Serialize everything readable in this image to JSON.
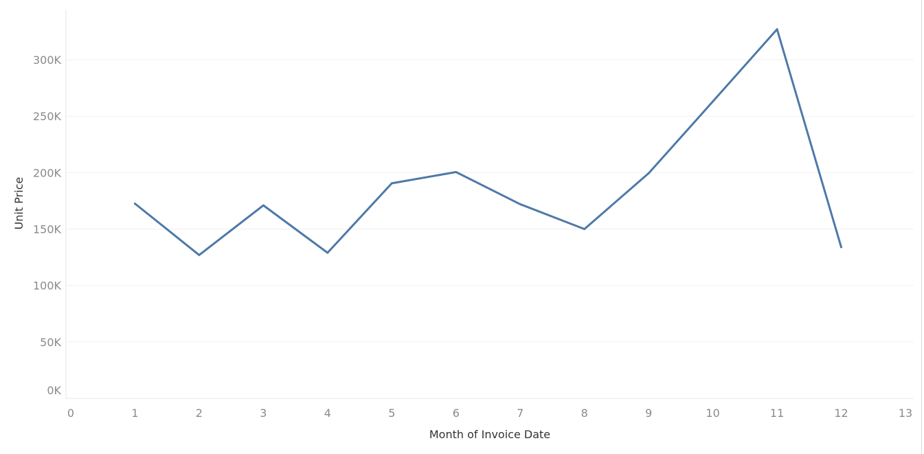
{
  "chart_data": {
    "type": "line",
    "title": "",
    "xlabel": "Month of Invoice Date",
    "ylabel": "Unit Price",
    "xlim": [
      0,
      13
    ],
    "ylim": [
      0,
      345000
    ],
    "x_ticks": [
      0,
      1,
      2,
      3,
      4,
      5,
      6,
      7,
      8,
      9,
      10,
      11,
      12,
      13
    ],
    "x_tick_labels": [
      "0",
      "1",
      "2",
      "3",
      "4",
      "5",
      "6",
      "7",
      "8",
      "9",
      "10",
      "11",
      "12",
      "13"
    ],
    "y_ticks": [
      0,
      50000,
      100000,
      150000,
      200000,
      250000,
      300000
    ],
    "y_tick_labels": [
      "0K",
      "50K",
      "100K",
      "150K",
      "200K",
      "250K",
      "300K"
    ],
    "grid": true,
    "series": [
      {
        "x": [
          1,
          2,
          3,
          4,
          5,
          6,
          7,
          8,
          9,
          10,
          11,
          12
        ],
        "values": [
          172500,
          127000,
          171000,
          129000,
          190500,
          200500,
          172000,
          150000,
          199500,
          263000,
          327000,
          134000
        ],
        "color": "#4e79a7"
      }
    ]
  }
}
